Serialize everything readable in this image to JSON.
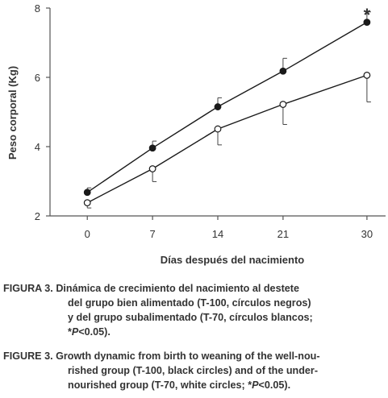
{
  "chart_data": {
    "type": "line",
    "xlabel": "Días después del nacimiento",
    "ylabel": "Peso corporal (Kg)",
    "x": [
      0,
      7,
      14,
      21,
      30
    ],
    "x_ticks": [
      "0",
      "7",
      "14",
      "21",
      "30"
    ],
    "y_ticks": [
      "2",
      "4",
      "6",
      "8"
    ],
    "xlim": [
      -4,
      32
    ],
    "ylim": [
      2,
      8
    ],
    "grid": false,
    "series": [
      {
        "marker": "filled-circle",
        "color": "#1a1a1a",
        "values": [
          2.68,
          3.96,
          5.15,
          6.18,
          7.59
        ],
        "error": [
          0.13,
          0.2,
          0.26,
          0.37,
          0.3
        ]
      },
      {
        "marker": "open-circle",
        "color": "#1a1a1a",
        "values": [
          2.38,
          3.36,
          4.51,
          5.22,
          6.06
        ],
        "error": [
          0.15,
          0.37,
          0.46,
          0.58,
          0.77
        ]
      }
    ],
    "annotations": [
      {
        "text": "*",
        "x": 30,
        "y": 7.95
      }
    ]
  },
  "captions": {
    "es": {
      "label": "FIGURA 3.",
      "line1": "Dinámica de crecimiento del nacimiento al destete",
      "line2": "del grupo bien alimentado (T-100, círculos negros)",
      "line3": "y del grupo subalimentado (T-70, círculos blancos;",
      "line4_pre": "*",
      "line4_p": "P",
      "line4_post": "<0.05)."
    },
    "en": {
      "label": "FIGURE 3.",
      "line1": "Growth dynamic from birth to weaning of the well-nou-",
      "line2": "rished group (T-100, black circles) and of the under-",
      "line3_pre": "nourished group (T-70, white circles; *",
      "line3_p": "P",
      "line3_post": "<0.05)."
    }
  }
}
